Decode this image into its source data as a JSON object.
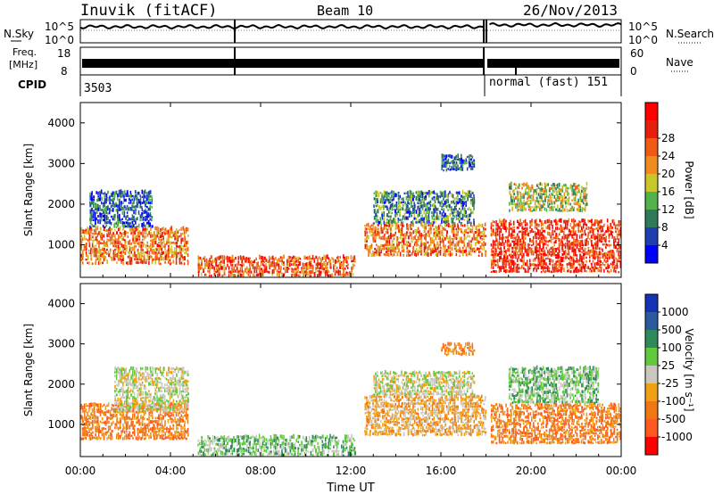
{
  "header": {
    "station": "Inuvik (fitACF)",
    "beam": "Beam 10",
    "date": "26/Nov/2013"
  },
  "panels": {
    "nsky": {
      "label": "N.Sky",
      "tick_top": "10^5",
      "tick_bottom": "10^0",
      "right_label": "N.Search",
      "right_tick_top": "10^5",
      "right_tick_bottom": "10^0"
    },
    "freq": {
      "label_line1": "Freq.",
      "label_line2": "[MHz]",
      "tick_top": "18",
      "tick_bottom": "8",
      "right_label": "Nave",
      "right_tick_top": "60",
      "right_tick_bottom": "0"
    },
    "cpid": {
      "label": "CPID",
      "segments": [
        {
          "text": "3503"
        },
        {
          "text": "normal (fast) 151"
        }
      ]
    }
  },
  "colorbars": {
    "power": {
      "label": "Power [dB]",
      "ticks": [
        "4",
        "8",
        "12",
        "16",
        "20",
        "24",
        "28"
      ],
      "colors": [
        "#0000ff",
        "#1f3fb0",
        "#2f7a5a",
        "#52b34a",
        "#c8c628",
        "#f08c1e",
        "#f05a14",
        "#e61e0a",
        "#ff0000"
      ]
    },
    "velocity": {
      "label": "Velocity [m s⁻¹]",
      "ticks": [
        "1000",
        "500",
        "100",
        "25",
        "-25",
        "-100",
        "-500",
        "-1000"
      ],
      "colors": [
        "#1432b4",
        "#2a5aa0",
        "#2e8a5a",
        "#62c83c",
        "#c8c8c0",
        "#f0a014",
        "#f07814",
        "#ff5a1e",
        "#ff0000"
      ]
    }
  },
  "chart_data": [
    {
      "type": "heatmap",
      "name": "power",
      "ylabel": "Slant Range [km]",
      "yticks": [
        "1000",
        "2000",
        "3000",
        "4000"
      ],
      "ylim": [
        200,
        4500
      ],
      "units": "km",
      "regions": [
        {
          "t0": 0.0,
          "t1": 4.8,
          "r0": 500,
          "r1": 1400,
          "value": 20
        },
        {
          "t0": 0.4,
          "t1": 3.2,
          "r0": 1400,
          "r1": 2300,
          "value": 6
        },
        {
          "t0": 5.2,
          "t1": 12.2,
          "r0": 200,
          "r1": 700,
          "value": 22
        },
        {
          "t0": 12.6,
          "t1": 18.0,
          "r0": 700,
          "r1": 1500,
          "value": 20
        },
        {
          "t0": 13.0,
          "t1": 17.5,
          "r0": 1500,
          "r1": 2300,
          "value": 9
        },
        {
          "t0": 16.0,
          "t1": 17.5,
          "r0": 2800,
          "r1": 3200,
          "value": 6
        },
        {
          "t0": 18.2,
          "t1": 24.0,
          "r0": 300,
          "r1": 1600,
          "value": 24
        },
        {
          "t0": 19.0,
          "t1": 22.5,
          "r0": 1800,
          "r1": 2500,
          "value": 14
        }
      ]
    },
    {
      "type": "heatmap",
      "name": "velocity",
      "ylabel": "Slant Range [km]",
      "yticks": [
        "1000",
        "2000",
        "3000",
        "4000"
      ],
      "ylim": [
        200,
        4500
      ],
      "units": "km",
      "xlabel": "Time UT",
      "xticks": [
        "00:00",
        "04:00",
        "08:00",
        "12:00",
        "16:00",
        "20:00",
        "00:00"
      ],
      "regions": [
        {
          "t0": 0.0,
          "t1": 4.8,
          "r0": 600,
          "r1": 1500,
          "value": -150
        },
        {
          "t0": 1.5,
          "t1": 4.8,
          "r0": 1300,
          "r1": 2400,
          "value": 0
        },
        {
          "t0": 5.2,
          "t1": 12.2,
          "r0": 200,
          "r1": 700,
          "value": 30
        },
        {
          "t0": 12.6,
          "t1": 18.0,
          "r0": 700,
          "r1": 1700,
          "value": -80
        },
        {
          "t0": 13.0,
          "t1": 17.5,
          "r0": 1700,
          "r1": 2300,
          "value": 0
        },
        {
          "t0": 16.0,
          "t1": 17.5,
          "r0": 2700,
          "r1": 3000,
          "value": -150
        },
        {
          "t0": 18.2,
          "t1": 24.0,
          "r0": 500,
          "r1": 1500,
          "value": -200
        },
        {
          "t0": 19.0,
          "t1": 23.0,
          "r0": 1500,
          "r1": 2400,
          "value": 50
        }
      ]
    }
  ]
}
